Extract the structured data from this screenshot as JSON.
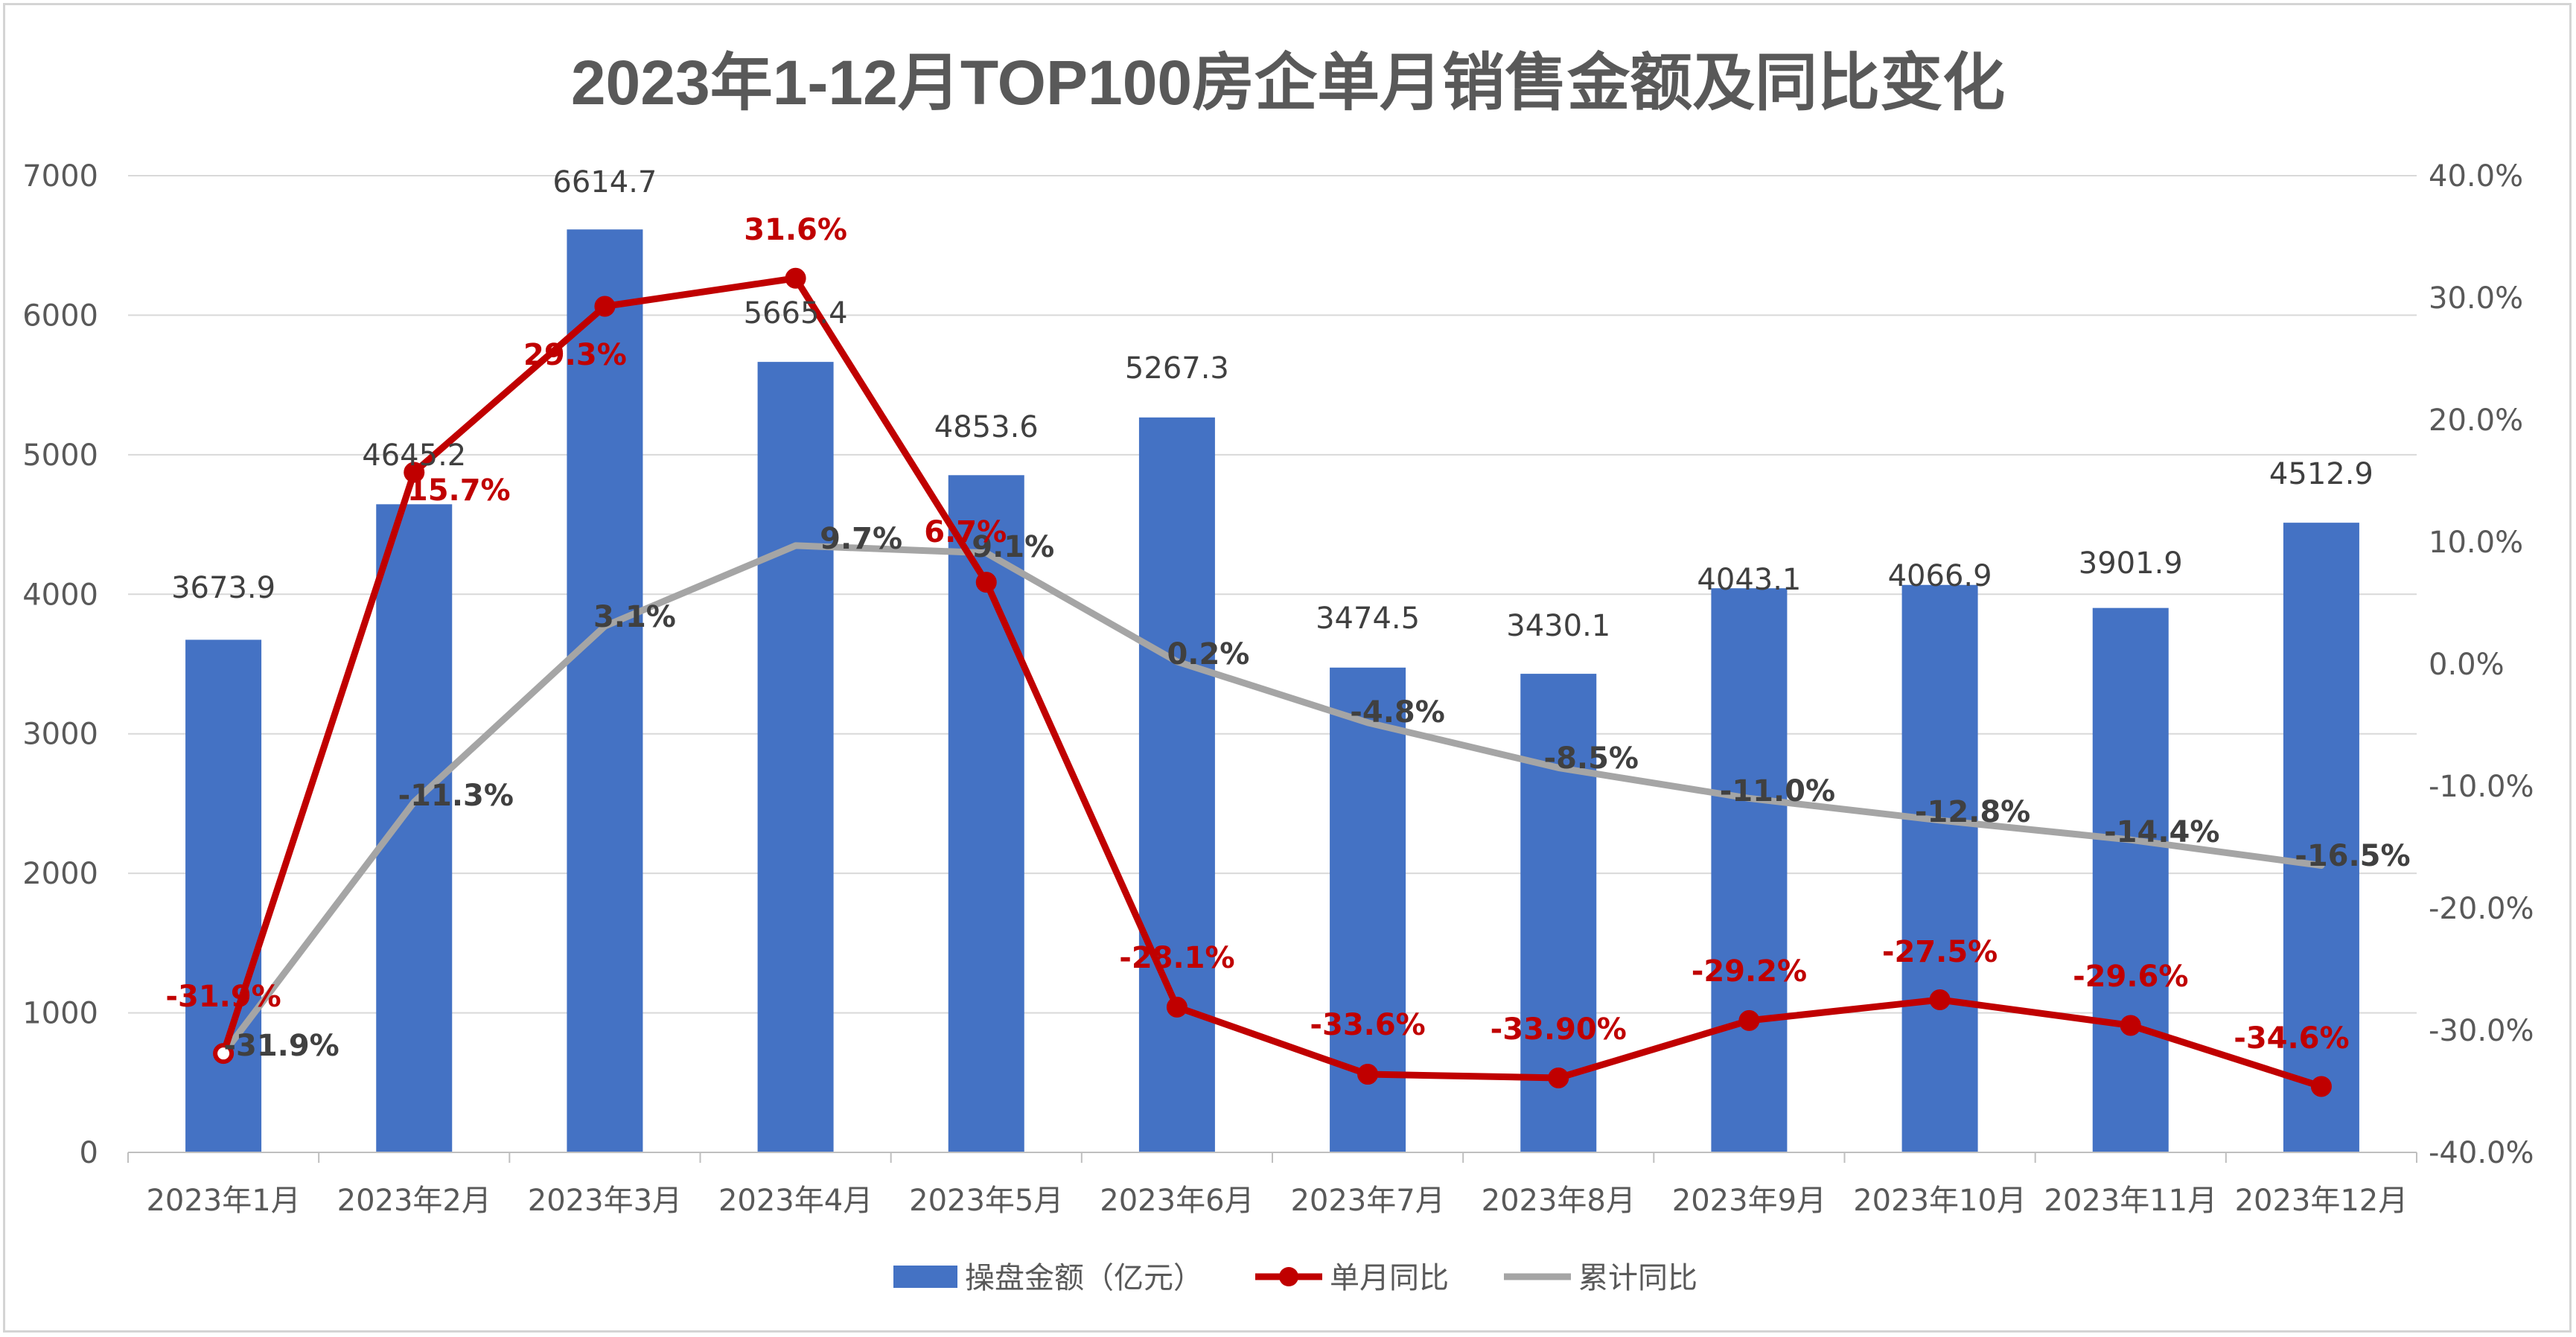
{
  "chart_data": {
    "type": "bar",
    "title": "2023年1-12月TOP100房企单月销售金额及同比变化",
    "categories": [
      "2023年1月",
      "2023年2月",
      "2023年3月",
      "2023年4月",
      "2023年5月",
      "2023年6月",
      "2023年7月",
      "2023年8月",
      "2023年9月",
      "2023年10月",
      "2023年11月",
      "2023年12月"
    ],
    "y_left": {
      "min": 0,
      "max": 7000,
      "step": 1000,
      "ticks": [
        "0",
        "1000",
        "2000",
        "3000",
        "4000",
        "5000",
        "6000",
        "7000"
      ]
    },
    "y_right": {
      "min": -40,
      "max": 40,
      "step": 10,
      "ticks": [
        "-40.0%",
        "-30.0%",
        "-20.0%",
        "-10.0%",
        "0.0%",
        "10.0%",
        "20.0%",
        "30.0%",
        "40.0%"
      ]
    },
    "grid": true,
    "legend_position": "bottom",
    "series": [
      {
        "name": "操盘金额（亿元）",
        "type": "bar",
        "axis": "left",
        "color": "#4472c4",
        "values": [
          3673.9,
          4645.2,
          6614.7,
          5665.4,
          4853.6,
          5267.3,
          3474.5,
          3430.1,
          4043.1,
          4066.9,
          3901.9,
          4512.9
        ],
        "labels": [
          "3673.9",
          "4645.2",
          "6614.7",
          "5665.4",
          "4853.6",
          "5267.3",
          "3474.5",
          "3430.1",
          "4043.1",
          "4066.9",
          "3901.9",
          "4512.9"
        ]
      },
      {
        "name": "单月同比",
        "type": "line",
        "axis": "right",
        "color": "#c00000",
        "marker": true,
        "values": [
          -31.9,
          15.7,
          29.3,
          31.6,
          6.7,
          -28.1,
          -33.6,
          -33.9,
          -29.2,
          -27.5,
          -29.6,
          -34.6
        ],
        "labels": [
          "-31.9%",
          "15.7%",
          "29.3%",
          "31.6%",
          "6.7%",
          "-28.1%",
          "-33.6%",
          "-33.90%",
          "-29.2%",
          "-27.5%",
          "-29.6%",
          "-34.6%"
        ]
      },
      {
        "name": "累计同比",
        "type": "line",
        "axis": "right",
        "color": "#a5a5a5",
        "marker": false,
        "values": [
          -31.9,
          -11.3,
          3.1,
          9.7,
          9.1,
          0.2,
          -4.8,
          -8.5,
          -11.0,
          -12.8,
          -14.4,
          -16.5
        ],
        "labels": [
          "-31.9%",
          "-11.3%",
          "3.1%",
          "9.7%",
          "9.1%",
          "0.2%",
          "-4.8%",
          "-8.5%",
          "-11.0%",
          "-12.8%",
          "-14.4%",
          "-16.5%"
        ]
      }
    ]
  }
}
